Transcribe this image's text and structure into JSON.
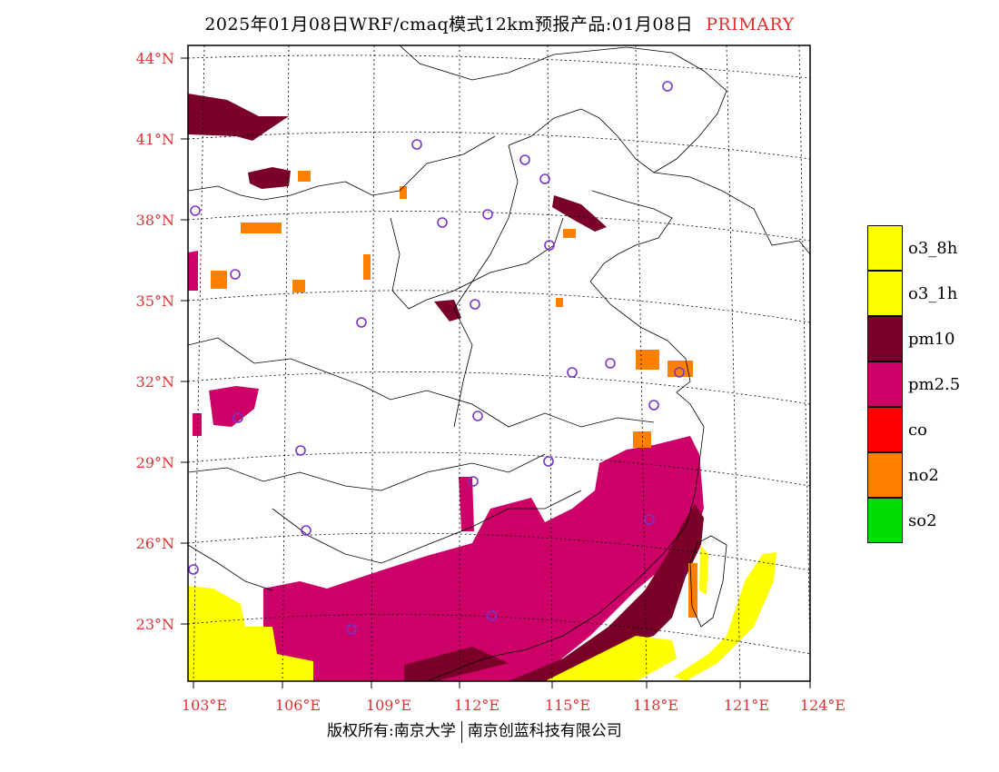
{
  "header": {
    "title": "2025年01月08日WRF/cmaq模式12km预报产品:01月08日",
    "status": "PRIMARY"
  },
  "map": {
    "lat_ticks": [
      "44°N",
      "41°N",
      "38°N",
      "35°N",
      "32°N",
      "29°N",
      "26°N",
      "23°N"
    ],
    "lon_ticks": [
      "103°E",
      "106°E",
      "109°E",
      "112°E",
      "115°E",
      "118°E",
      "121°E",
      "124°E"
    ]
  },
  "legend": {
    "items": [
      {
        "label": "o3_8h",
        "color": "#ffff00"
      },
      {
        "label": "o3_1h",
        "color": "#ffff00"
      },
      {
        "label": "pm10",
        "color": "#7a0028"
      },
      {
        "label": "pm2.5",
        "color": "#cc0066"
      },
      {
        "label": "co",
        "color": "#ff0000"
      },
      {
        "label": "no2",
        "color": "#ff7f00"
      },
      {
        "label": "so2",
        "color": "#00dd00"
      }
    ]
  },
  "footer": {
    "copyright": "版权所有:南京大学",
    "company": "南京创蓝科技有限公司"
  }
}
